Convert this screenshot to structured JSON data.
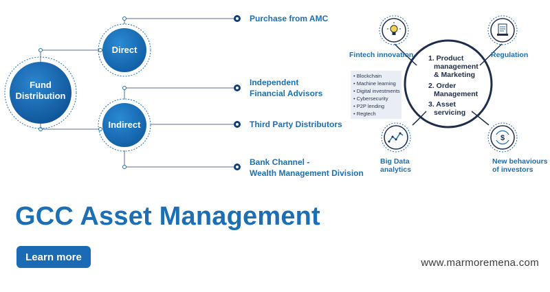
{
  "left_diagram": {
    "root_line1": "Fund",
    "root_line2": "Distribution",
    "direct": "Direct",
    "indirect": "Indirect",
    "purchase": "Purchase from AMC",
    "ifa_line1": "Independent",
    "ifa_line2": "Financial Advisors",
    "tpd": "Third Party Distributors",
    "bank_line1": "Bank Channel -",
    "bank_line2": "Wealth Management Division"
  },
  "right_diagram": {
    "fintech": "Fintech innovation",
    "regulation": "Regulation",
    "bigdata_line1": "Big Data",
    "bigdata_line2": "analytics",
    "newbeh_line1": "New behaviours",
    "newbeh_line2": "of investors",
    "center_item1_line1": "1. Product",
    "center_item1_line2": "management",
    "center_item1_line3": "& Marketing",
    "center_item2_line1": "2. Order",
    "center_item2_line2": "Management",
    "center_item3_line1": "3. Asset",
    "center_item3_line2": "servicing",
    "fintech_list": [
      "Blockchain",
      "Machine learning",
      "Digital investments",
      "Cybersecurity",
      "P2P lending",
      "Regtech"
    ]
  },
  "icons": {
    "fintech": "lightbulb-icon",
    "regulation": "document-icon",
    "bigdata": "line-chart-icon",
    "newbeh": "dollar-cycle-icon"
  },
  "headline": "GCC Asset Management",
  "cta_label": "Learn more",
  "website": "www.marmoremena.com",
  "colors": {
    "brand_blue": "#1c6fb5",
    "dark_navy": "#1f2d4d",
    "button_blue": "#1a6bb3"
  }
}
